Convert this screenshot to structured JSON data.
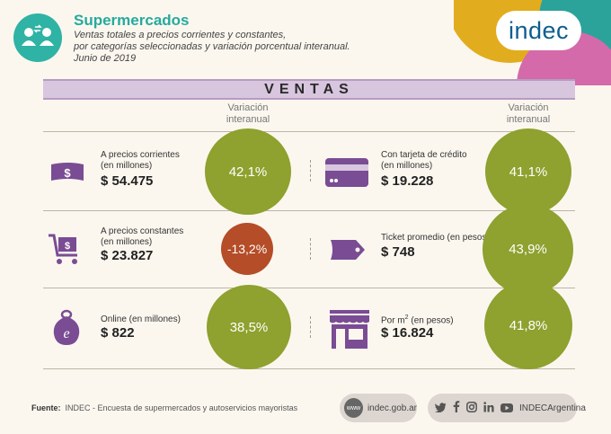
{
  "header": {
    "title": "Supermercados",
    "subtitle_lines": [
      "Ventas totales a precios corrientes y constantes,",
      "por categorías seleccionadas y variación porcentual interanual.",
      "Junio de 2019"
    ]
  },
  "logo": "indec",
  "banner": "VENTAS",
  "column_header": "Variación interanual",
  "column_header_lines": [
    "Variación",
    "interanual"
  ],
  "items": [
    {
      "label_lines": [
        "A precios corrientes",
        "(en millones)"
      ],
      "value": "$ 54.475",
      "variation": "42,1%",
      "icon": "banknote-dollar-icon"
    },
    {
      "label_lines": [
        "Con tarjeta de crédito",
        "(en millones)"
      ],
      "value": "$ 19.228",
      "variation": "41,1%",
      "icon": "credit-card-icon"
    },
    {
      "label_lines": [
        "A precios constantes",
        "(en millones)"
      ],
      "value": "$ 23.827",
      "variation": "-13,2%",
      "icon": "shopping-cart-icon"
    },
    {
      "label_lines": [
        "Ticket promedio (en pesos)"
      ],
      "value": "$ 748",
      "variation": "43,9%",
      "icon": "price-tag-icon"
    },
    {
      "label_lines": [
        "Online (en millones)"
      ],
      "value": "$ 822",
      "variation": "38,5%",
      "icon": "online-bag-icon"
    },
    {
      "label_lines": [
        "Por m",
        "(en pesos)"
      ],
      "label_sup": "2",
      "value": "$ 16.824",
      "variation": "41,8%",
      "icon": "storefront-icon"
    }
  ],
  "footer": {
    "source_label": "Fuente:",
    "source_text": "INDEC - Encuesta de supermercados y autoservicios mayoristas",
    "web_badge": "www",
    "website": "indec.gob.ar",
    "social_handle": "INDECArgentina",
    "social_icons": [
      "twitter-icon",
      "facebook-icon",
      "instagram-icon",
      "linkedin-icon",
      "youtube-icon"
    ]
  },
  "colors": {
    "teal": "#25aa9d",
    "positive_circle": "#8fa12e",
    "negative_circle": "#b44d28",
    "icon_purple": "#7a4c94",
    "banner": "#d8c6de"
  }
}
